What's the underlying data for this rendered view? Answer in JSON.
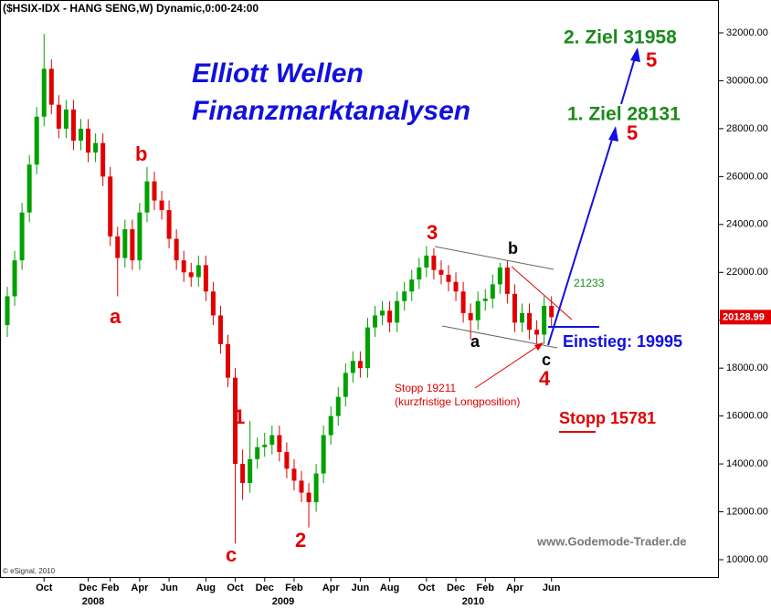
{
  "chart_data": {
    "type": "candlestick",
    "title": "($HSIX-IDX - HANG SENG,W) Dynamic,0:00-24:00",
    "categories": [
      null,
      null,
      null,
      null,
      null,
      "Oct",
      null,
      null,
      null,
      null,
      null,
      "Dec",
      null,
      null,
      "Feb",
      null,
      null,
      null,
      "Apr",
      null,
      null,
      null,
      "Jun",
      null,
      null,
      null,
      null,
      "Aug",
      null,
      null,
      null,
      "Oct",
      null,
      null,
      null,
      "Dec",
      null,
      null,
      null,
      "Feb",
      null,
      null,
      null,
      null,
      "Apr",
      null,
      null,
      null,
      "Jun",
      null,
      null,
      null,
      "Aug",
      null,
      null,
      null,
      null,
      "Oct",
      null,
      null,
      null,
      "Dec",
      null,
      null,
      null,
      "Feb",
      null,
      null,
      null,
      "Apr",
      null,
      null,
      null,
      null,
      "Jun"
    ],
    "year_labels": [
      "2008",
      "2009",
      "2010"
    ],
    "open": [
      19800,
      21000,
      22500,
      24500,
      26500,
      28500,
      30500,
      29000,
      28000,
      28800,
      27500,
      28000,
      27000,
      27400,
      26000,
      23500,
      22600,
      23800,
      22500,
      24500,
      25800,
      25000,
      24600,
      23400,
      22500,
      22000,
      21800,
      22300,
      21200,
      20200,
      19000,
      17600,
      14000,
      13200,
      14200,
      14700,
      14800,
      15200,
      14500,
      13800,
      13300,
      12800,
      12400,
      13600,
      15200,
      16000,
      16800,
      17800,
      18300,
      18000,
      19700,
      20200,
      20400,
      19900,
      20800,
      21200,
      21700,
      22200,
      22700,
      22100,
      21900,
      21600,
      21200,
      20300,
      20000,
      20800,
      20900,
      21500,
      22200,
      21100,
      19900,
      20300,
      19600,
      19400,
      20600
    ],
    "high": [
      21400,
      22900,
      24900,
      26900,
      28900,
      31958,
      30900,
      29400,
      29200,
      29200,
      28400,
      28400,
      27800,
      27800,
      26400,
      23900,
      24200,
      24200,
      24900,
      26400,
      26200,
      25400,
      25000,
      23800,
      22900,
      22400,
      22700,
      22700,
      21600,
      20600,
      19400,
      18000,
      14600,
      15800,
      15100,
      15300,
      15600,
      15600,
      14900,
      14200,
      13700,
      13200,
      14000,
      15600,
      16400,
      17200,
      18200,
      18700,
      18700,
      20100,
      20600,
      20800,
      20800,
      21200,
      21600,
      22100,
      22600,
      23100,
      23000,
      22500,
      22300,
      22000,
      21600,
      20700,
      21200,
      21300,
      21900,
      22400,
      22500,
      21500,
      20700,
      20700,
      20000,
      21000,
      21000
    ],
    "low": [
      19300,
      20600,
      22100,
      24100,
      26100,
      28100,
      28600,
      27600,
      27600,
      27100,
      27100,
      26600,
      26600,
      25600,
      23100,
      21000,
      22200,
      22100,
      22100,
      24100,
      24600,
      24200,
      23000,
      22100,
      21600,
      21400,
      21400,
      20800,
      19800,
      18600,
      17200,
      10676,
      12500,
      12800,
      13800,
      14300,
      14400,
      14100,
      13400,
      12900,
      12400,
      11345,
      12000,
      13200,
      14800,
      15600,
      16400,
      17400,
      17600,
      17600,
      19300,
      19800,
      19500,
      19500,
      20400,
      20800,
      21300,
      21800,
      21700,
      21500,
      21200,
      20800,
      19900,
      19200,
      19600,
      20400,
      20500,
      21100,
      20700,
      19500,
      19500,
      19200,
      19000,
      19000,
      19700
    ],
    "close": [
      21000,
      22500,
      24500,
      26500,
      28500,
      30500,
      29000,
      28000,
      28800,
      27500,
      28000,
      27000,
      27400,
      26000,
      23500,
      22600,
      23800,
      22500,
      24500,
      25800,
      25000,
      24600,
      23400,
      22500,
      22000,
      21800,
      22300,
      21200,
      20200,
      19000,
      17600,
      14000,
      13200,
      14200,
      14700,
      14800,
      15200,
      14500,
      13800,
      13300,
      12800,
      12400,
      13600,
      15200,
      16000,
      16800,
      17800,
      18300,
      18000,
      19700,
      20200,
      20400,
      19900,
      20800,
      21200,
      21700,
      22200,
      22700,
      22100,
      21900,
      21600,
      21200,
      20300,
      20000,
      20800,
      20900,
      21500,
      22200,
      21100,
      19900,
      20300,
      19600,
      19400,
      20600,
      20129
    ],
    "up_color": "#00a000",
    "down_color": "#e00000",
    "ylim": [
      10000,
      32000
    ],
    "yticks": [
      {
        "value": 10000,
        "label": "10000.00"
      },
      {
        "value": 12000,
        "label": "12000.00"
      },
      {
        "value": 14000,
        "label": "14000.00"
      },
      {
        "value": 16000,
        "label": "16000.00"
      },
      {
        "value": 18000,
        "label": "18000.00"
      },
      {
        "value": 20000,
        "label": "20000.00"
      },
      {
        "value": 22000,
        "label": "22000.00"
      },
      {
        "value": 24000,
        "label": "24000.00"
      },
      {
        "value": 26000,
        "label": "26000.00"
      },
      {
        "value": 28000,
        "label": "28000.00"
      },
      {
        "value": 30000,
        "label": "30000.00"
      },
      {
        "value": 32000,
        "label": "32000.00"
      }
    ],
    "last_price": {
      "value": 20128.99,
      "label": "20128.99"
    },
    "headline": [
      "Elliott Wellen",
      "Finanzmarktanalysen"
    ],
    "waves": [
      "b",
      "a",
      "1",
      "c",
      "2",
      "3",
      "b",
      "a",
      "c",
      "4",
      "5",
      "5"
    ],
    "annotations": [
      "2. Ziel 31958",
      "1. Ziel 28131",
      "21233",
      "Einstieg: 19995",
      "Stopp 19211",
      "(kurzfristige Longposition)",
      "Stopp 15781"
    ],
    "source": "www.Godemode-Trader.de",
    "copyright": "© eSignal, 2010"
  }
}
